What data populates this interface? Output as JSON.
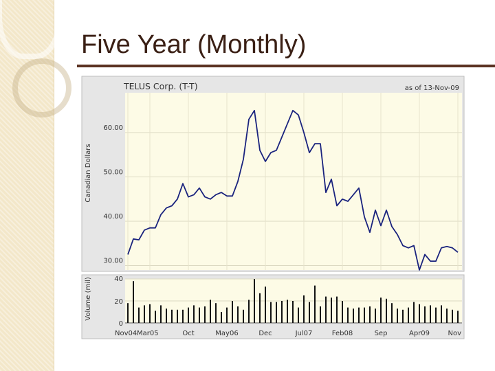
{
  "slide": {
    "title": "Five Year (Monthly)"
  },
  "chart_data": {
    "type": "line",
    "title": "TELUS Corp. (T-T)",
    "subtitle": "as of 13-Nov-09",
    "ylabel": "Canadian Dollars",
    "ylim": [
      29,
      69
    ],
    "yticks": [
      30,
      40,
      50,
      60
    ],
    "ytick_labels": [
      "30.00",
      "40.00",
      "50.00",
      "60.00"
    ],
    "x_labels": [
      "Nov04",
      "Mar05",
      "Oct",
      "May06",
      "Dec",
      "Jul07",
      "Feb08",
      "Sep",
      "Apr09",
      "Nov"
    ],
    "x_label_index": [
      0,
      4,
      11,
      18,
      25,
      32,
      39,
      46,
      53,
      60
    ],
    "grid": true,
    "series": [
      {
        "values": [
          32.5,
          36,
          35.8,
          38,
          38.5,
          38.5,
          41.5,
          43,
          43.5,
          45,
          48.5,
          45.5,
          46,
          47.5,
          45.5,
          45,
          46,
          46.5,
          45.7,
          45.7,
          49,
          54,
          63,
          65,
          56,
          53.5,
          55.5,
          56,
          59,
          62,
          65,
          64,
          60,
          55.5,
          57.5,
          57.5,
          46.5,
          49.5,
          43.5,
          45,
          44.5,
          46,
          47.5,
          41,
          37.5,
          42.5,
          39,
          42.5,
          38.8,
          37,
          34.5,
          34,
          34.5,
          29,
          32.5,
          31,
          31,
          34,
          34.3,
          34,
          33
        ]
      }
    ],
    "volume": {
      "ylabel": "Volume (mil)",
      "ylim": [
        0,
        40
      ],
      "yticks": [
        0,
        20,
        40
      ],
      "ytick_labels": [
        "0",
        "20",
        "40"
      ],
      "values": [
        18,
        38,
        14,
        16,
        17,
        11,
        16,
        13,
        12,
        12,
        12,
        14,
        16,
        14,
        15,
        21,
        18,
        10,
        14,
        20,
        15,
        12,
        21,
        40,
        27,
        33,
        19,
        19,
        20,
        21,
        20,
        14,
        25,
        19,
        34,
        15,
        24,
        23,
        24,
        20,
        14,
        13,
        14,
        14,
        15,
        13,
        23,
        22,
        18,
        13,
        12,
        14,
        19,
        17,
        15,
        16,
        14,
        16,
        13,
        12,
        11
      ]
    }
  }
}
